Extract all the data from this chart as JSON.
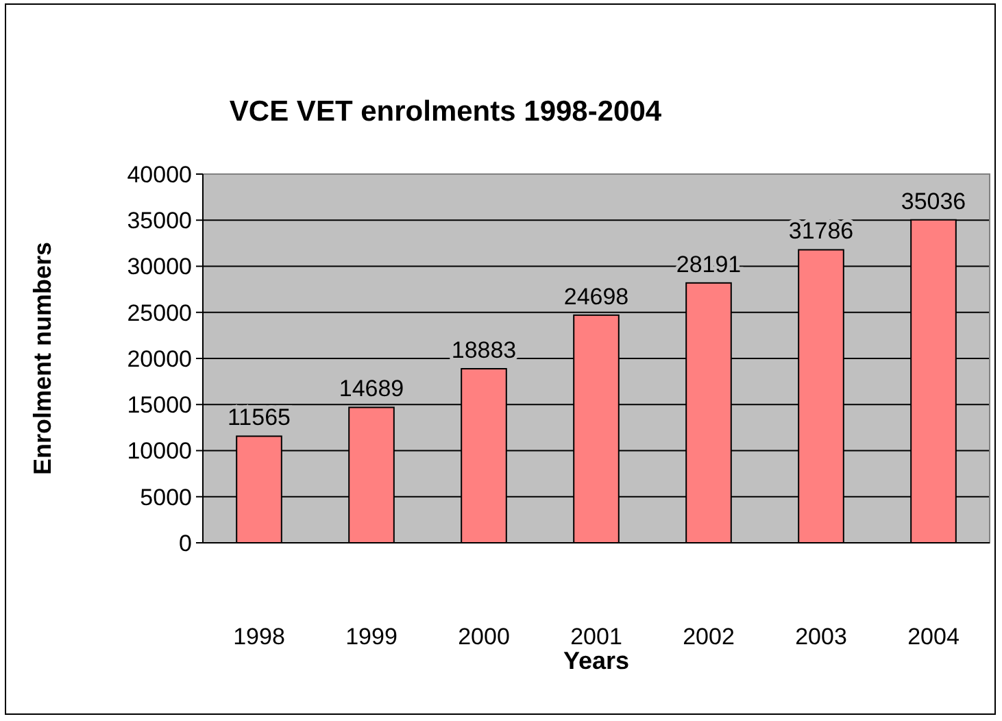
{
  "chart_data": {
    "type": "bar",
    "title": "VCE VET enrolments 1998-2004",
    "xlabel": "Years",
    "ylabel": "Enrolment numbers",
    "categories": [
      "1998",
      "1999",
      "2000",
      "2001",
      "2002",
      "2003",
      "2004"
    ],
    "values": [
      11565,
      14689,
      18883,
      24698,
      28191,
      31786,
      35036
    ],
    "color": "#ff8080",
    "ylim": [
      0,
      40000
    ],
    "yticks": [
      0,
      5000,
      10000,
      15000,
      20000,
      25000,
      30000,
      35000,
      40000
    ],
    "grid": "y",
    "data_labels": true
  }
}
